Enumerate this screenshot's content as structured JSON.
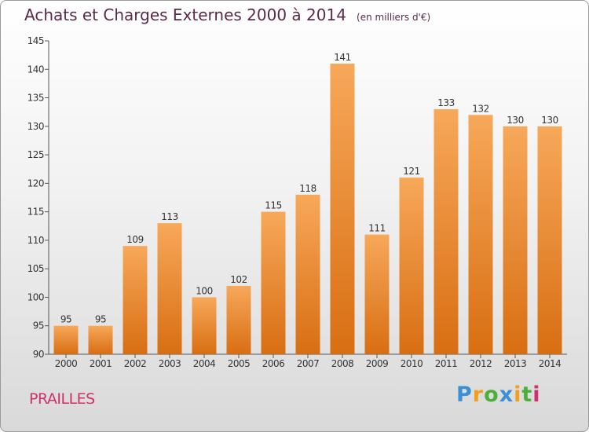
{
  "chart_data": {
    "type": "bar",
    "title": "Achats et Charges Externes 2000 à 2014",
    "subtitle": "(en milliers d'€)",
    "categories": [
      "2000",
      "2001",
      "2002",
      "2003",
      "2004",
      "2005",
      "2006",
      "2007",
      "2008",
      "2009",
      "2010",
      "2011",
      "2012",
      "2013",
      "2014"
    ],
    "values": [
      95,
      95,
      109,
      113,
      100,
      102,
      115,
      118,
      141,
      111,
      121,
      133,
      132,
      130,
      130
    ],
    "ylim": [
      90,
      145
    ],
    "yticks": [
      90,
      95,
      100,
      105,
      110,
      115,
      120,
      125,
      130,
      135,
      140,
      145
    ],
    "grid": false,
    "legend": "none",
    "bar_color": "#f28c28"
  },
  "commune": "PRAILLES",
  "brand": {
    "letters": [
      "P",
      "r",
      "o",
      "x",
      "i",
      "t",
      "i"
    ],
    "colors": [
      "#3a8fd6",
      "#f0a020",
      "#4caf3a",
      "#3a8fd6",
      "#f0a020",
      "#4caf3a",
      "#d03070"
    ]
  }
}
